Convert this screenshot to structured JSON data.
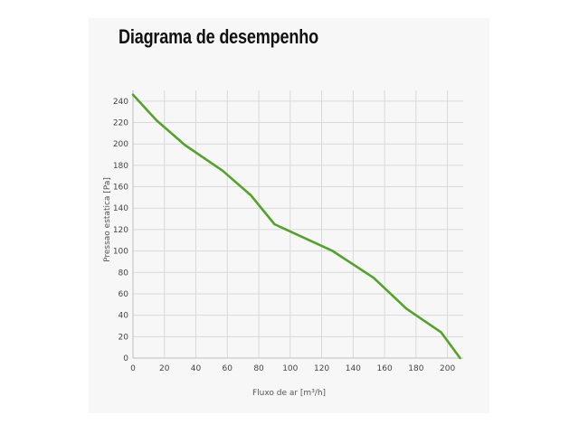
{
  "page": {
    "title": "Diagrama de desempenho"
  },
  "colors": {
    "series": "#53a32a",
    "grid": "#d9d9d9",
    "axis": "#bfbfbf"
  },
  "chart_data": {
    "type": "line",
    "title": "Diagrama de desempenho",
    "xlabel": "Fluxo de ar [m³/h]",
    "ylabel": "Pressao estatica [Pa]",
    "xlim": [
      0,
      210
    ],
    "ylim": [
      0,
      250
    ],
    "xticks": [
      0,
      20,
      40,
      60,
      80,
      100,
      120,
      140,
      160,
      180,
      200
    ],
    "yticks": [
      0,
      20,
      40,
      60,
      80,
      100,
      120,
      140,
      160,
      180,
      200,
      220,
      240
    ],
    "grid": true,
    "legend": "none",
    "series": [
      {
        "x": [
          0,
          15,
          33,
          57,
          75,
          90,
          127,
          153,
          174,
          196,
          208
        ],
        "y": [
          246,
          222,
          199,
          175,
          152,
          125,
          100,
          75,
          46,
          24,
          0
        ]
      }
    ]
  }
}
